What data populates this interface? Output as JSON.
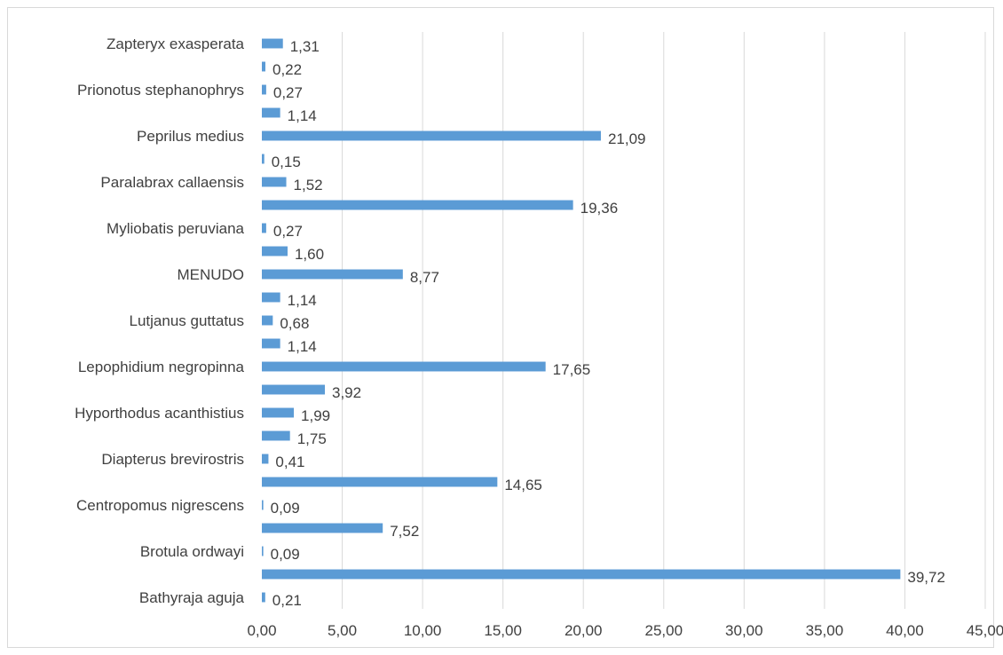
{
  "chart_data": {
    "type": "bar",
    "orientation": "horizontal",
    "title": "",
    "xlabel": "",
    "ylabel": "",
    "xlim": [
      0,
      45
    ],
    "x_ticks": [
      "0,00",
      "5,00",
      "10,00",
      "15,00",
      "20,00",
      "25,00",
      "30,00",
      "35,00",
      "40,00",
      "45,00"
    ],
    "x_tick_values": [
      0,
      5,
      10,
      15,
      20,
      25,
      30,
      35,
      40,
      45
    ],
    "grid": "vertical",
    "legend": "none",
    "bar_color": "#5b9bd5",
    "categories": [
      "Bathyraja aguja",
      "",
      "Brotula ordwayi",
      "",
      "Centropomus nigrescens",
      "",
      "Diapterus brevirostris",
      "",
      "Hyporthodus acanthistius",
      "",
      "Lepophidium negropinna",
      "",
      "Lutjanus guttatus",
      "",
      "MENUDO",
      "",
      "Myliobatis peruviana",
      "",
      "Paralabrax callaensis",
      "",
      "Peprilus medius",
      "",
      "Prionotus stephanophrys",
      "",
      "Zapteryx exasperata"
    ],
    "values": [
      0.21,
      39.72,
      0.09,
      7.52,
      0.09,
      14.65,
      0.41,
      1.75,
      1.99,
      3.92,
      17.65,
      1.14,
      0.68,
      1.14,
      8.77,
      1.6,
      0.27,
      19.36,
      1.52,
      0.15,
      21.09,
      1.14,
      0.27,
      0.22,
      1.31
    ],
    "value_labels": [
      "0,21",
      "39,72",
      "0,09",
      "7,52",
      "0,09",
      "14,65",
      "0,41",
      "1,75",
      "1,99",
      "3,92",
      "17,65",
      "1,14",
      "0,68",
      "1,14",
      "8,77",
      "1,60",
      "0,27",
      "19,36",
      "1,52",
      "0,15",
      "21,09",
      "1,14",
      "0,27",
      "0,22",
      "1,31"
    ]
  }
}
